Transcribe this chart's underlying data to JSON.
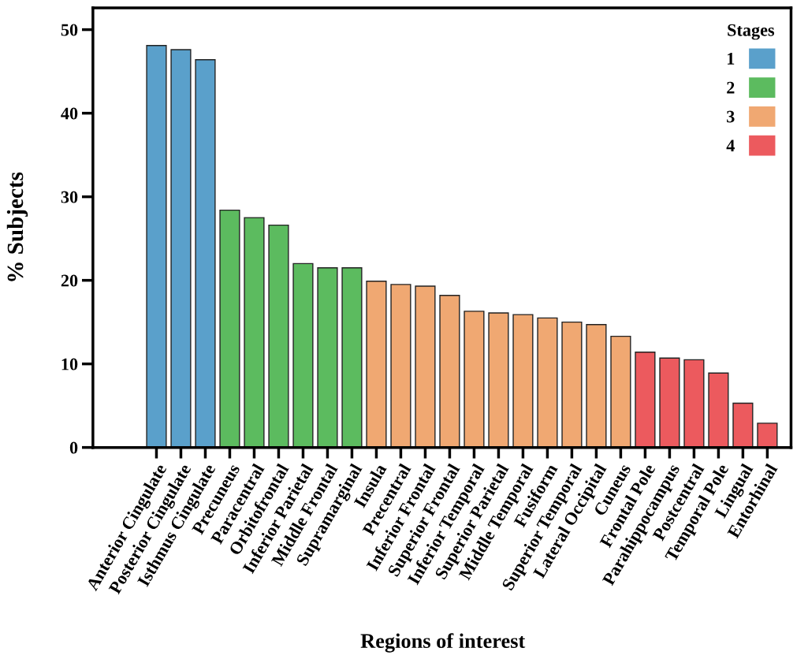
{
  "chart_data": {
    "type": "bar",
    "xlabel": "Regions of interest",
    "ylabel": "% Subjects",
    "legend_title": "Stages",
    "legend": "top right",
    "grid": false,
    "categories": [
      "Anterior Cingulate",
      "Posterior Cingulate",
      "Isthmus Cingulate",
      "Precuneus",
      "Paracentral",
      "Orbitofrontal",
      "Inferior Parietal",
      "Middle Frontal",
      "Supramarginal",
      "Insula",
      "Precentral",
      "Inferior Frontal",
      "Superior Frontal",
      "Inferior Temporal",
      "Superior Parietal",
      "Middle Temporal",
      "Fusiform",
      "Superior Temporal",
      "Lateral Occipital",
      "Cuneus",
      "Frontal Pole",
      "Parahippocampus",
      "Postcentral",
      "Temporal Pole",
      "Lingual",
      "Entorhinal"
    ],
    "series": [
      {
        "name": "1",
        "color": "#5aa0cb",
        "values": [
          48.1,
          47.6,
          46.4,
          null,
          null,
          null,
          null,
          null,
          null,
          null,
          null,
          null,
          null,
          null,
          null,
          null,
          null,
          null,
          null,
          null,
          null,
          null,
          null,
          null,
          null,
          null
        ]
      },
      {
        "name": "2",
        "color": "#5cbb5f",
        "values": [
          null,
          null,
          null,
          28.4,
          27.5,
          26.6,
          22.0,
          21.5,
          21.5,
          null,
          null,
          null,
          null,
          null,
          null,
          null,
          null,
          null,
          null,
          null,
          null,
          null,
          null,
          null,
          null,
          null
        ]
      },
      {
        "name": "3",
        "color": "#f0a872",
        "values": [
          null,
          null,
          null,
          null,
          null,
          null,
          null,
          null,
          null,
          19.9,
          19.5,
          19.3,
          18.2,
          16.3,
          16.1,
          15.9,
          15.5,
          15.0,
          14.7,
          13.3,
          null,
          null,
          null,
          null,
          null,
          null
        ]
      },
      {
        "name": "4",
        "color": "#ec5a5e",
        "values": [
          null,
          null,
          null,
          null,
          null,
          null,
          null,
          null,
          null,
          null,
          null,
          null,
          null,
          null,
          null,
          null,
          null,
          null,
          null,
          null,
          11.4,
          10.7,
          10.5,
          8.9,
          5.3,
          2.9
        ]
      }
    ],
    "ylim": [
      0,
      52.6
    ],
    "yticks": [
      0,
      10,
      20,
      30,
      40,
      50
    ]
  }
}
